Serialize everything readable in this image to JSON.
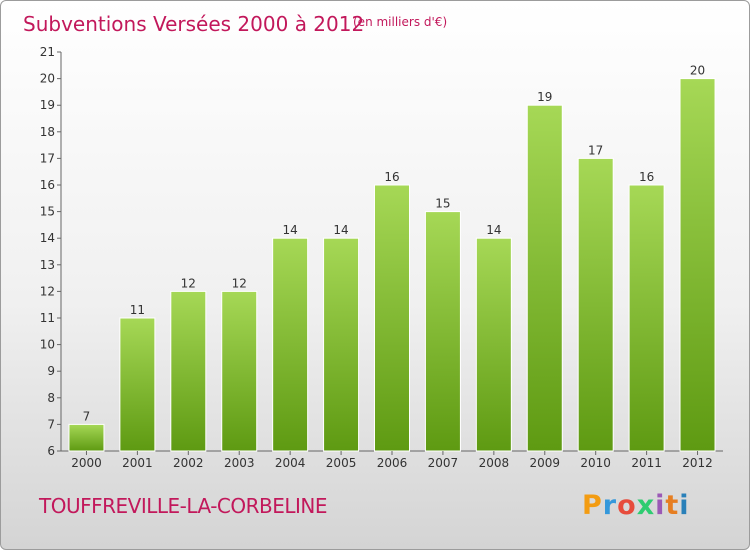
{
  "header": {
    "title": "Subventions Versées 2000 à 2012",
    "subtitle": "(en milliers d'€)"
  },
  "footer": {
    "commune": "TOUFFREVILLE-LA-CORBELINE",
    "logo": "Proxiti"
  },
  "colors": {
    "title": "#c2185b",
    "bar_light": "#a6d856",
    "bar_dark": "#5e9a12",
    "logo_letters": [
      "#f39c12",
      "#3498db",
      "#e74c3c",
      "#2ecc71",
      "#9b59b6",
      "#e67e22",
      "#2980b9"
    ]
  },
  "chart_data": {
    "type": "bar",
    "categories": [
      "2000",
      "2001",
      "2002",
      "2003",
      "2004",
      "2005",
      "2006",
      "2007",
      "2008",
      "2009",
      "2010",
      "2011",
      "2012"
    ],
    "values": [
      7,
      11,
      12,
      12,
      14,
      14,
      16,
      15,
      14,
      19,
      17,
      16,
      20
    ],
    "title": "Subventions Versées 2000 à 2012",
    "subtitle": "(en milliers d'€)",
    "xlabel": "",
    "ylabel": "",
    "ylim": [
      6,
      21
    ],
    "yticks": [
      6,
      7,
      8,
      9,
      10,
      11,
      12,
      13,
      14,
      15,
      16,
      17,
      18,
      19,
      20,
      21
    ],
    "grid": false,
    "legend": "none"
  }
}
